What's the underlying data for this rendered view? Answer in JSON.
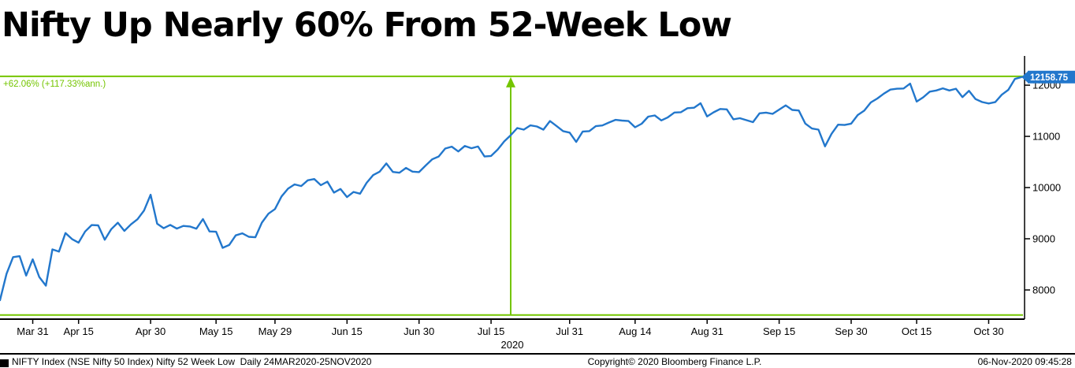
{
  "title": "Nifty Up Nearly 60% From 52-Week Low",
  "footer": {
    "left": "NIFTY Index (NSE Nifty 50 Index) Nifty 52 Week Low  Daily 24MAR2020-25NOV2020",
    "center": "Copyright© 2020 Bloomberg Finance L.P.",
    "right": "06-Nov-2020 09:45:28"
  },
  "colors": {
    "line": "#2277cc",
    "measure_green": "#74c500",
    "label_bg": "#2277cc",
    "label_text": "#ffffff",
    "axis": "#000000",
    "background": "#ffffff"
  },
  "chart_data": {
    "type": "line",
    "title": "Nifty Up Nearly 60% From 52-Week Low",
    "xlabel": "2020",
    "ylabel": "",
    "ylim": [
      7430,
      12540
    ],
    "y_ticks": [
      8000,
      9000,
      10000,
      11000,
      12000
    ],
    "x_tick_labels": [
      "Mar 31",
      "Apr 15",
      "Apr 30",
      "May 15",
      "May 29",
      "Jun 15",
      "Jun 30",
      "Jul 15",
      "Jul 31",
      "Aug 14",
      "Aug 31",
      "Sep 15",
      "Sep 30",
      "Oct 15",
      "Oct 30"
    ],
    "x_axis_year": "2020",
    "grid": false,
    "legend": "none",
    "last_value": 12158.75,
    "last_value_label": "12158.75",
    "measure": {
      "from_value": 7511.1,
      "to_value": 12172.7,
      "vline_date": "Jul 20",
      "label": "+62.06% (+117.33%ann.)"
    },
    "series": [
      {
        "name": "NIFTY Index",
        "points": [
          [
            "Mar 24",
            7801
          ],
          [
            "Mar 25",
            8317
          ],
          [
            "Mar 26",
            8641
          ],
          [
            "Mar 27",
            8660
          ],
          [
            "Mar 30",
            8281
          ],
          [
            "Mar 31",
            8598
          ],
          [
            "Apr 1",
            8254
          ],
          [
            "Apr 3",
            8084
          ],
          [
            "Apr 7",
            8792
          ],
          [
            "Apr 8",
            8749
          ],
          [
            "Apr 9",
            9112
          ],
          [
            "Apr 13",
            8994
          ],
          [
            "Apr 15",
            8925
          ],
          [
            "Apr 16",
            9142
          ],
          [
            "Apr 17",
            9267
          ],
          [
            "Apr 20",
            9262
          ],
          [
            "Apr 21",
            8981
          ],
          [
            "Apr 22",
            9187
          ],
          [
            "Apr 23",
            9314
          ],
          [
            "Apr 24",
            9154
          ],
          [
            "Apr 27",
            9282
          ],
          [
            "Apr 28",
            9381
          ],
          [
            "Apr 29",
            9553
          ],
          [
            "Apr 30",
            9860
          ],
          [
            "May 4",
            9294
          ],
          [
            "May 5",
            9206
          ],
          [
            "May 6",
            9271
          ],
          [
            "May 7",
            9199
          ],
          [
            "May 8",
            9251
          ],
          [
            "May 11",
            9240
          ],
          [
            "May 12",
            9197
          ],
          [
            "May 13",
            9384
          ],
          [
            "May 14",
            9143
          ],
          [
            "May 15",
            9137
          ],
          [
            "May 18",
            8823
          ],
          [
            "May 19",
            8879
          ],
          [
            "May 20",
            9066
          ],
          [
            "May 21",
            9106
          ],
          [
            "May 22",
            9039
          ],
          [
            "May 26",
            9029
          ],
          [
            "May 27",
            9315
          ],
          [
            "May 28",
            9490
          ],
          [
            "May 29",
            9580
          ],
          [
            "Jun 1",
            9826
          ],
          [
            "Jun 2",
            9979
          ],
          [
            "Jun 3",
            10062
          ],
          [
            "Jun 4",
            10029
          ],
          [
            "Jun 5",
            10142
          ],
          [
            "Jun 8",
            10167
          ],
          [
            "Jun 9",
            10047
          ],
          [
            "Jun 10",
            10116
          ],
          [
            "Jun 11",
            9902
          ],
          [
            "Jun 12",
            9973
          ],
          [
            "Jun 15",
            9814
          ],
          [
            "Jun 16",
            9914
          ],
          [
            "Jun 17",
            9881
          ],
          [
            "Jun 18",
            10092
          ],
          [
            "Jun 19",
            10244
          ],
          [
            "Jun 22",
            10311
          ],
          [
            "Jun 23",
            10471
          ],
          [
            "Jun 24",
            10305
          ],
          [
            "Jun 25",
            10289
          ],
          [
            "Jun 26",
            10383
          ],
          [
            "Jun 29",
            10312
          ],
          [
            "Jun 30",
            10302
          ],
          [
            "Jul 1",
            10430
          ],
          [
            "Jul 2",
            10552
          ],
          [
            "Jul 3",
            10607
          ],
          [
            "Jul 6",
            10763
          ],
          [
            "Jul 7",
            10799
          ],
          [
            "Jul 8",
            10705
          ],
          [
            "Jul 9",
            10813
          ],
          [
            "Jul 10",
            10768
          ],
          [
            "Jul 13",
            10802
          ],
          [
            "Jul 14",
            10607
          ],
          [
            "Jul 15",
            10618
          ],
          [
            "Jul 16",
            10740
          ],
          [
            "Jul 17",
            10901
          ],
          [
            "Jul 20",
            11022
          ],
          [
            "Jul 21",
            11162
          ],
          [
            "Jul 22",
            11132
          ],
          [
            "Jul 23",
            11215
          ],
          [
            "Jul 24",
            11194
          ],
          [
            "Jul 27",
            11132
          ],
          [
            "Jul 28",
            11300
          ],
          [
            "Jul 29",
            11203
          ],
          [
            "Jul 30",
            11102
          ],
          [
            "Jul 31",
            11073
          ],
          [
            "Aug 3",
            10891
          ],
          [
            "Aug 4",
            11095
          ],
          [
            "Aug 5",
            11102
          ],
          [
            "Aug 6",
            11200
          ],
          [
            "Aug 7",
            11214
          ],
          [
            "Aug 10",
            11270
          ],
          [
            "Aug 11",
            11322
          ],
          [
            "Aug 12",
            11308
          ],
          [
            "Aug 13",
            11300
          ],
          [
            "Aug 14",
            11178
          ],
          [
            "Aug 17",
            11247
          ],
          [
            "Aug 18",
            11385
          ],
          [
            "Aug 19",
            11408
          ],
          [
            "Aug 20",
            11312
          ],
          [
            "Aug 21",
            11372
          ],
          [
            "Aug 24",
            11466
          ],
          [
            "Aug 25",
            11472
          ],
          [
            "Aug 26",
            11550
          ],
          [
            "Aug 27",
            11559
          ],
          [
            "Aug 28",
            11648
          ],
          [
            "Aug 31",
            11388
          ],
          [
            "Sep 1",
            11470
          ],
          [
            "Sep 2",
            11535
          ],
          [
            "Sep 3",
            11527
          ],
          [
            "Sep 4",
            11334
          ],
          [
            "Sep 7",
            11355
          ],
          [
            "Sep 8",
            11317
          ],
          [
            "Sep 9",
            11278
          ],
          [
            "Sep 10",
            11450
          ],
          [
            "Sep 11",
            11464
          ],
          [
            "Sep 14",
            11440
          ],
          [
            "Sep 15",
            11522
          ],
          [
            "Sep 16",
            11605
          ],
          [
            "Sep 17",
            11516
          ],
          [
            "Sep 18",
            11505
          ],
          [
            "Sep 21",
            11250
          ],
          [
            "Sep 22",
            11153
          ],
          [
            "Sep 23",
            11132
          ],
          [
            "Sep 24",
            10806
          ],
          [
            "Sep 25",
            11050
          ],
          [
            "Sep 28",
            11228
          ],
          [
            "Sep 29",
            11222
          ],
          [
            "Sep 30",
            11248
          ],
          [
            "Oct 1",
            11417
          ],
          [
            "Oct 5",
            11503
          ],
          [
            "Oct 6",
            11662
          ],
          [
            "Oct 7",
            11739
          ],
          [
            "Oct 8",
            11835
          ],
          [
            "Oct 9",
            11914
          ],
          [
            "Oct 12",
            11931
          ],
          [
            "Oct 13",
            11935
          ],
          [
            "Oct 14",
            12031
          ],
          [
            "Oct 15",
            11680
          ],
          [
            "Oct 16",
            11762
          ],
          [
            "Oct 19",
            11873
          ],
          [
            "Oct 20",
            11897
          ],
          [
            "Oct 21",
            11938
          ],
          [
            "Oct 22",
            11896
          ],
          [
            "Oct 23",
            11930
          ],
          [
            "Oct 26",
            11767
          ],
          [
            "Oct 27",
            11889
          ],
          [
            "Oct 28",
            11729
          ],
          [
            "Oct 29",
            11671
          ],
          [
            "Oct 30",
            11642
          ],
          [
            "Nov 2",
            11669
          ],
          [
            "Nov 3",
            11814
          ],
          [
            "Nov 4",
            11909
          ],
          [
            "Nov 5",
            12121
          ],
          [
            "Nov 6",
            12158.75
          ]
        ]
      }
    ]
  }
}
